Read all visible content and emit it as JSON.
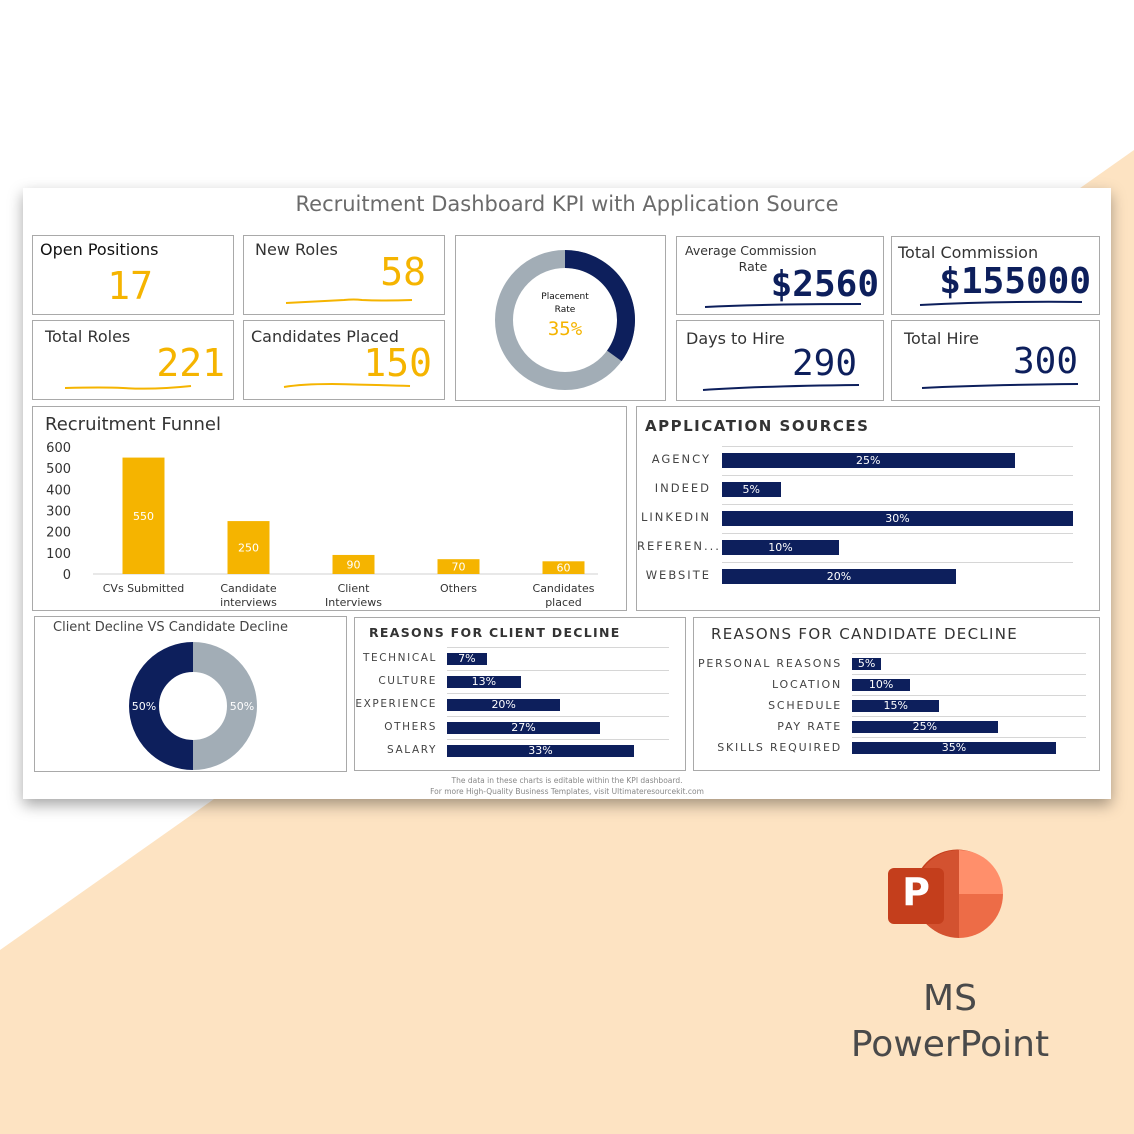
{
  "colors": {
    "accent": "#f5b400",
    "navy": "#0d1f5c",
    "grey": "#a2adb6",
    "peach": "#fde3c2"
  },
  "dashboard": {
    "title": "Recruitment Dashboard KPI with Application Source",
    "kpis": {
      "open_positions": {
        "label": "Open Positions",
        "value": "17"
      },
      "new_roles": {
        "label": "New Roles",
        "value": "58"
      },
      "total_roles": {
        "label": "Total Roles",
        "value": "221"
      },
      "candidates_placed": {
        "label": "Candidates Placed",
        "value": "150"
      },
      "placement_rate": {
        "label_line1": "Placement",
        "label_line2": "Rate",
        "value": "35%"
      },
      "avg_commission": {
        "label_line1": "Average Commission",
        "label_line2": "Rate",
        "value": "$2560"
      },
      "total_commission": {
        "label": "Total Commission",
        "value": "$155000"
      },
      "days_to_hire": {
        "label": "Days to Hire",
        "value": "290"
      },
      "total_hire": {
        "label": "Total Hire",
        "value": "300"
      }
    },
    "footer": {
      "line1": "The data in these charts is editable within the KPI dashboard.",
      "line2": "For more High-Quality Business Templates, visit Ultimateresourcekit.com"
    }
  },
  "chart_data": [
    {
      "type": "bar",
      "title": "Recruitment Funnel",
      "categories": [
        "CVs Submitted",
        "Candidate interviews",
        "Client Interviews",
        "Others",
        "Candidates placed"
      ],
      "values": [
        550,
        250,
        90,
        70,
        60
      ],
      "ylim": [
        0,
        600
      ],
      "yticks": [
        "600",
        "500",
        "400",
        "300",
        "200",
        "100",
        "0"
      ]
    },
    {
      "type": "bar",
      "title": "APPLICATION SOURCES",
      "categories": [
        "AGENCY",
        "INDEED",
        "LINKEDIN",
        "REFEREN...",
        "WEBSITE"
      ],
      "values": [
        25,
        5,
        30,
        10,
        20
      ],
      "labels": [
        "25%",
        "5%",
        "30%",
        "10%",
        "20%"
      ]
    },
    {
      "type": "pie",
      "title": "Client Decline VS Candidate Decline",
      "values": [
        50,
        50
      ],
      "labels": [
        "50%",
        "50%"
      ]
    },
    {
      "type": "bar",
      "title": "REASONS FOR CLIENT DECLINE",
      "categories": [
        "TECHNICAL",
        "CULTURE",
        "EXPERIENCE",
        "OTHERS",
        "SALARY"
      ],
      "values": [
        7,
        13,
        20,
        27,
        33
      ],
      "labels": [
        "7%",
        "13%",
        "20%",
        "27%",
        "33%"
      ]
    },
    {
      "type": "bar",
      "title": "REASONS FOR CANDIDATE DECLINE",
      "categories": [
        "PERSONAL REASONS",
        "LOCATION",
        "SCHEDULE",
        "PAY RATE",
        "SKILLS REQUIRED"
      ],
      "values": [
        5,
        10,
        15,
        25,
        35
      ],
      "labels": [
        "5%",
        "10%",
        "15%",
        "25%",
        "35%"
      ]
    }
  ],
  "branding": {
    "line1": "MS",
    "line2": "PowerPoint",
    "logo_letter": "P"
  }
}
